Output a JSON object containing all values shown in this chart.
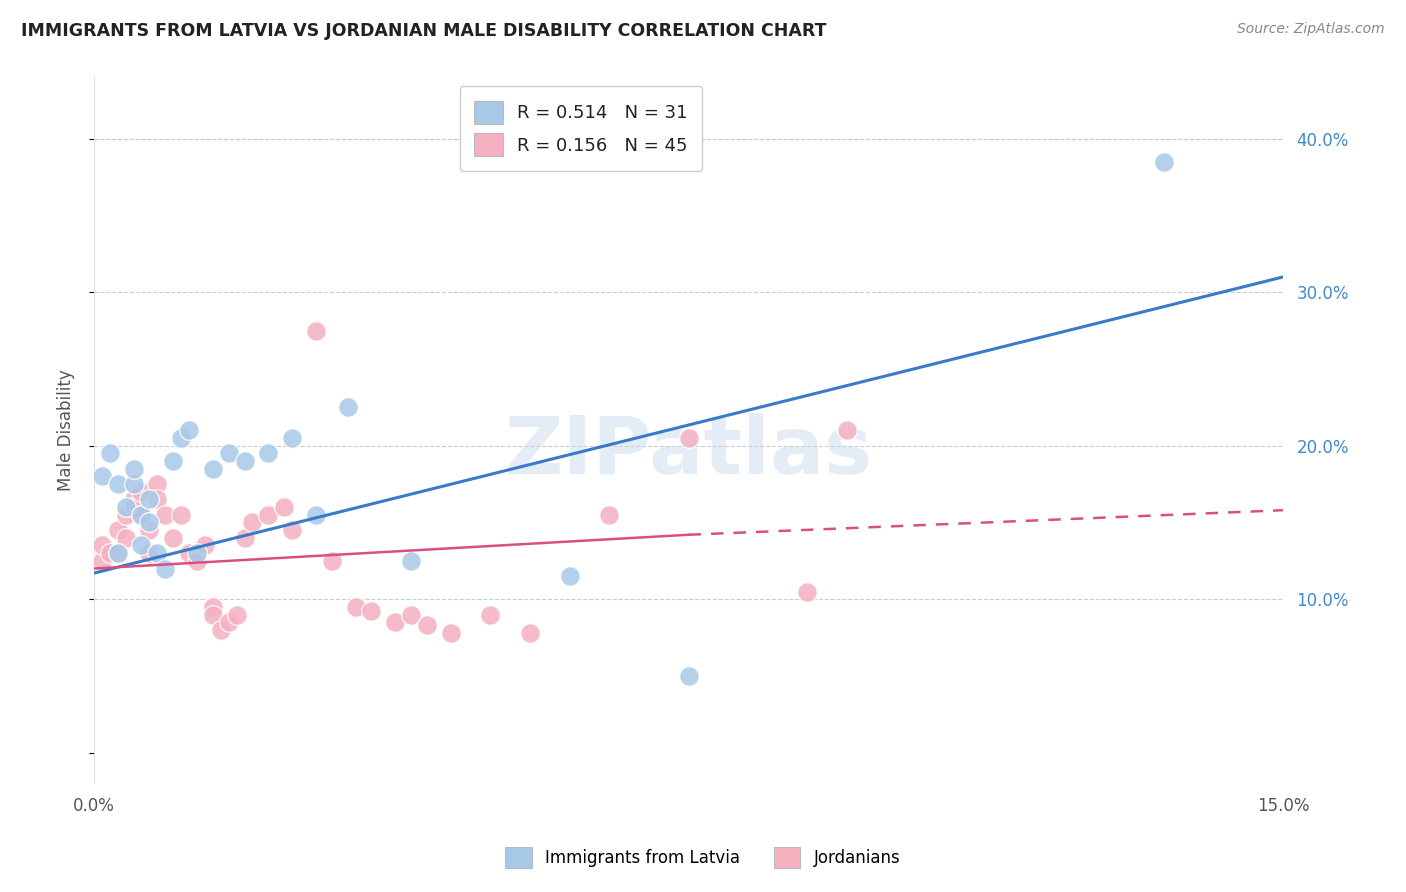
{
  "title": "IMMIGRANTS FROM LATVIA VS JORDANIAN MALE DISABILITY CORRELATION CHART",
  "source": "Source: ZipAtlas.com",
  "ylabel": "Male Disability",
  "xlim": [
    0.0,
    0.15
  ],
  "ylim": [
    -0.02,
    0.44
  ],
  "plot_ylim": [
    -0.02,
    0.44
  ],
  "x_ticks": [
    0.0,
    0.03,
    0.06,
    0.09,
    0.12,
    0.15
  ],
  "x_tick_labels": [
    "0.0%",
    "",
    "",
    "",
    "",
    "15.0%"
  ],
  "y_ticks_right": [
    0.1,
    0.2,
    0.3,
    0.4
  ],
  "y_tick_labels_right": [
    "10.0%",
    "20.0%",
    "30.0%",
    "40.0%"
  ],
  "watermark": "ZIPatlas",
  "blue_color": "#a8c8e8",
  "pink_color": "#f5b0c0",
  "blue_line_color": "#3a7bc8",
  "pink_line_color": "#d85080",
  "title_color": "#222222",
  "source_color": "#888888",
  "grid_color": "#cccccc",
  "right_tick_color": "#4488cc",
  "blue_line": {
    "x0": 0.0,
    "y0": 0.117,
    "x1": 0.15,
    "y1": 0.31
  },
  "pink_line_solid": {
    "x0": 0.0,
    "y0": 0.12,
    "x1": 0.075,
    "y1": 0.142
  },
  "pink_line_dashed": {
    "x0": 0.075,
    "y0": 0.142,
    "x1": 0.15,
    "y1": 0.158
  },
  "blue_x": [
    0.001,
    0.002,
    0.003,
    0.003,
    0.004,
    0.005,
    0.005,
    0.006,
    0.006,
    0.007,
    0.007,
    0.008,
    0.009,
    0.01,
    0.011,
    0.012,
    0.013,
    0.015,
    0.017,
    0.019,
    0.022,
    0.025,
    0.028,
    0.032,
    0.04,
    0.06,
    0.075,
    0.135
  ],
  "blue_y": [
    0.18,
    0.195,
    0.175,
    0.13,
    0.16,
    0.175,
    0.185,
    0.155,
    0.135,
    0.15,
    0.165,
    0.13,
    0.12,
    0.19,
    0.205,
    0.21,
    0.13,
    0.185,
    0.195,
    0.19,
    0.195,
    0.205,
    0.155,
    0.225,
    0.125,
    0.115,
    0.05,
    0.385
  ],
  "pink_x": [
    0.001,
    0.001,
    0.002,
    0.003,
    0.003,
    0.004,
    0.004,
    0.005,
    0.005,
    0.006,
    0.006,
    0.007,
    0.007,
    0.008,
    0.008,
    0.009,
    0.01,
    0.011,
    0.012,
    0.013,
    0.014,
    0.015,
    0.015,
    0.016,
    0.017,
    0.018,
    0.019,
    0.02,
    0.022,
    0.024,
    0.025,
    0.028,
    0.03,
    0.033,
    0.035,
    0.038,
    0.04,
    0.042,
    0.045,
    0.05,
    0.055,
    0.065,
    0.075,
    0.09,
    0.095
  ],
  "pink_y": [
    0.125,
    0.135,
    0.13,
    0.145,
    0.13,
    0.155,
    0.14,
    0.165,
    0.16,
    0.17,
    0.155,
    0.145,
    0.13,
    0.175,
    0.165,
    0.155,
    0.14,
    0.155,
    0.13,
    0.125,
    0.135,
    0.095,
    0.09,
    0.08,
    0.085,
    0.09,
    0.14,
    0.15,
    0.155,
    0.16,
    0.145,
    0.275,
    0.125,
    0.095,
    0.092,
    0.085,
    0.09,
    0.083,
    0.078,
    0.09,
    0.078,
    0.155,
    0.205,
    0.105,
    0.21
  ]
}
